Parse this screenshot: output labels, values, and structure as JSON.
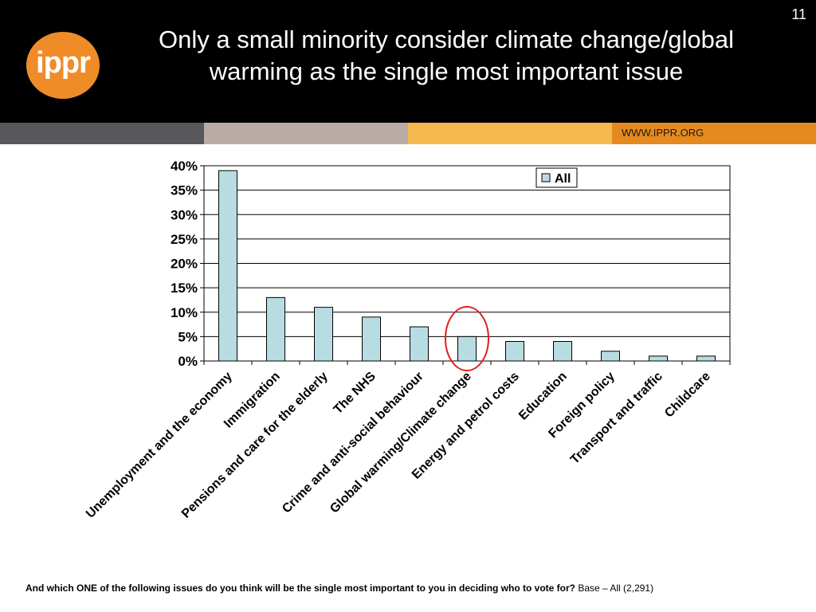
{
  "header": {
    "logo_text": "ippr",
    "title_line1": "Only a small minority consider climate change/global",
    "title_line2": "warming as the single most important issue",
    "page_number": "11",
    "website": "WWW.IPPR.ORG"
  },
  "colors": {
    "header_bg": "#000000",
    "logo_orange": "#f08c28",
    "bar_fill": "#b7dde2",
    "highlight_circle": "#e02020"
  },
  "chart_data": {
    "type": "bar",
    "categories": [
      "Unemployment and the economy",
      "Immigration",
      "Pensions and care for the elderly",
      "The NHS",
      "Crime and anti-social behaviour",
      "Global warming/Climate change",
      "Energy and petrol costs",
      "Education",
      "Foreign policy",
      "Transport and traffic",
      "Childcare"
    ],
    "series": [
      {
        "name": "All",
        "values": [
          39,
          13,
          11,
          9,
          7,
          5,
          4,
          4,
          2,
          1,
          1
        ]
      }
    ],
    "yticks": [
      "0%",
      "5%",
      "10%",
      "15%",
      "20%",
      "25%",
      "30%",
      "35%",
      "40%"
    ],
    "ylim": [
      0,
      40
    ],
    "grid": true,
    "legend_position": "top-right",
    "highlight_category": "Global warming/Climate change"
  },
  "footer": {
    "question": "And which ONE of the following issues do you think will be the single most important to you in deciding who to vote for?",
    "base": "Base – All (2,291)"
  }
}
